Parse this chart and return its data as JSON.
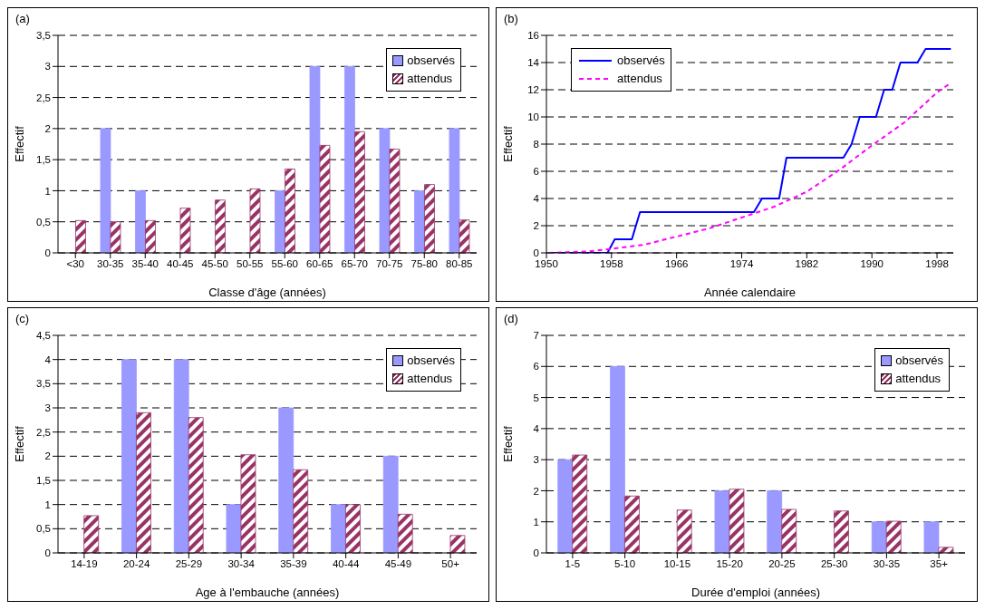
{
  "chart_data": [
    {
      "type": "bar",
      "title": "(a)",
      "xlabel": "Classe d'âge (années)",
      "ylabel": "Effectif",
      "categories": [
        "<30",
        "30-35",
        "35-40",
        "40-45",
        "45-50",
        "50-55",
        "55-60",
        "60-65",
        "65-70",
        "70-75",
        "75-80",
        "80-85"
      ],
      "series": [
        {
          "name": "observés",
          "color": "#9999ff",
          "values": [
            0,
            2,
            1,
            0,
            0,
            0,
            1,
            3,
            3,
            2,
            1,
            2
          ]
        },
        {
          "name": "attendus",
          "color": "#993366",
          "values": [
            0.52,
            0.5,
            0.52,
            0.72,
            0.85,
            1.03,
            1.35,
            1.73,
            1.95,
            1.67,
            1.1,
            0.53
          ]
        }
      ],
      "ylim": [
        0,
        3.5
      ],
      "yticks": [
        0,
        {
          "value": 0.5,
          "label": "0,5"
        },
        1,
        {
          "value": 1.5,
          "label": "1,5"
        },
        2,
        {
          "value": 2.5,
          "label": "2,5"
        },
        3,
        {
          "value": 3.5,
          "label": "3,5"
        }
      ],
      "grid": "y",
      "legend": "top right"
    },
    {
      "type": "line",
      "title": "(b)",
      "xlabel": "Année calendaire",
      "ylabel": "Effectif",
      "marker": "none",
      "series": [
        {
          "name": "observés",
          "color": "#0000ff",
          "line_style": "solid",
          "x": [
            1950.3,
            1957.5,
            1958.4,
            1960.5,
            1961.5,
            1975.5,
            1976.5,
            1978.6,
            1979.5,
            1986.5,
            1987.5,
            1988.5,
            1990.5,
            1991.5,
            1992.5,
            1993.5,
            1995.6,
            1996.6,
            1999.7
          ],
          "values": [
            0,
            0,
            1,
            1,
            3,
            3,
            4,
            4,
            7,
            7,
            8,
            10,
            10,
            12,
            12,
            14,
            14,
            15,
            15
          ]
        },
        {
          "name": "attendus",
          "color": "#ff00ff",
          "line_style": "dashed",
          "x": [
            1950.3,
            1955,
            1958,
            1962,
            1966,
            1970,
            1974,
            1978,
            1982,
            1986,
            1990,
            1994,
            1998,
            1999.7
          ],
          "values": [
            0,
            0.1,
            0.3,
            0.6,
            1.2,
            1.8,
            2.6,
            3.4,
            4.5,
            6.1,
            7.9,
            9.6,
            11.8,
            12.5
          ]
        }
      ],
      "xlim": [
        1950,
        2000
      ],
      "xticks": [
        1950,
        1958,
        1966,
        1974,
        1982,
        1990,
        1998
      ],
      "ylim": [
        0,
        16
      ],
      "yticks": [
        0,
        2,
        4,
        6,
        8,
        10,
        12,
        14,
        16
      ],
      "grid": "y",
      "legend": "top left"
    },
    {
      "type": "bar",
      "title": "(c)",
      "xlabel": "Age à l'embauche (années)",
      "ylabel": "Effectif",
      "categories": [
        "14-19",
        "20-24",
        "25-29",
        "30-34",
        "35-39",
        "40-44",
        "45-49",
        "50+"
      ],
      "series": [
        {
          "name": "observés",
          "color": "#9999ff",
          "values": [
            0,
            4,
            4,
            1,
            3,
            1,
            2,
            0
          ]
        },
        {
          "name": "attendus",
          "color": "#993366",
          "values": [
            0.77,
            2.9,
            2.8,
            2.03,
            1.72,
            1,
            0.8,
            0.36
          ]
        }
      ],
      "ylim": [
        0,
        4.5
      ],
      "yticks": [
        0,
        {
          "value": 0.5,
          "label": "0,5"
        },
        1,
        {
          "value": 1.5,
          "label": "1,5"
        },
        2,
        {
          "value": 2.5,
          "label": "2,5"
        },
        3,
        {
          "value": 3.5,
          "label": "3,5"
        },
        4,
        {
          "value": 4.5,
          "label": "4,5"
        }
      ],
      "grid": "y",
      "legend": "top right"
    },
    {
      "type": "bar",
      "title": "(d)",
      "xlabel": "Durée d'emploi (années)",
      "ylabel": "Effectif",
      "categories": [
        "1-5",
        "5-10",
        "10-15",
        "15-20",
        "20-25",
        "25-30",
        "30-35",
        "35+"
      ],
      "series": [
        {
          "name": "observés",
          "color": "#9999ff",
          "values": [
            3,
            6,
            0,
            2,
            2,
            0,
            1,
            1
          ]
        },
        {
          "name": "attendus",
          "color": "#993366",
          "values": [
            3.15,
            1.83,
            1.38,
            2.05,
            1.4,
            1.35,
            1.02,
            0.18
          ]
        }
      ],
      "ylim": [
        0,
        7
      ],
      "yticks": [
        0,
        1,
        2,
        3,
        4,
        5,
        6,
        7
      ],
      "grid": "y",
      "legend": "top right"
    }
  ]
}
